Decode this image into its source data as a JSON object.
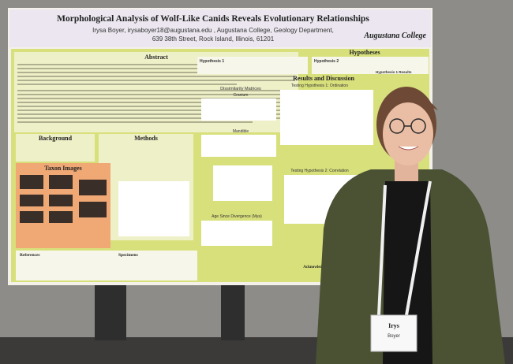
{
  "poster": {
    "title": "Morphological Analysis of Wolf-Like Canids Reveals Evolutionary Relationships",
    "authors": "Irysa Boyer, irysaboyer18@augustana.edu , Augustana College, Geology Department,",
    "address": "639 38th Street, Rock Island, Illinois, 61201",
    "institution": "Augustana College",
    "sections": {
      "abstract": "Abstract",
      "hypotheses": "Hypotheses",
      "hypothesis_1": "Hypothesis 1",
      "hypothesis_2": "Hypothesis 2",
      "results": "Results and Discussion",
      "background": "Background",
      "methods": "Methods",
      "taxon_images": "Taxon Images",
      "references": "References",
      "specimens": "Specimens",
      "acknowledgements": "Acknowledgements",
      "dissimilarity": "Dissimilarity Matrices",
      "cranium": "Cranium",
      "mandible": "Mandible",
      "ordination": "Testing Hypothesis 1: Ordination",
      "correlation": "Testing Hypothesis 2: Correlation",
      "age": "Age Since Divergence (Mya)",
      "h1_results": "Hypothesis 1 Results"
    }
  },
  "badge": {
    "name": "Irys",
    "surname": "Boyer"
  }
}
